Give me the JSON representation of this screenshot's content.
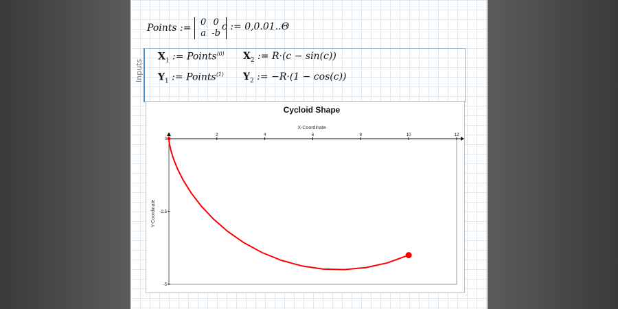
{
  "worksheet": {
    "points_def": {
      "name": "Points",
      "matrix": [
        [
          "0",
          "0"
        ],
        [
          "a",
          "-b"
        ]
      ]
    },
    "range_def": "c := 0,0.01..Θ",
    "region_label": "Inputs",
    "x1": {
      "lhs": "X",
      "sub": "1",
      "rhs": "Points",
      "sup": "⟨0⟩"
    },
    "y1": {
      "lhs": "Y",
      "sub": "1",
      "rhs": "Points",
      "sup": "⟨1⟩"
    },
    "x2": {
      "lhs": "X",
      "sub": "2",
      "rhs": "R·(c − sin(c))"
    },
    "y2": {
      "lhs": "Y",
      "sub": "2",
      "rhs": "−R·(1 − cos(c))"
    }
  },
  "chart_data": {
    "type": "line",
    "title": "Cycloid Shape",
    "xlabel": "X-Coordinate",
    "ylabel": "Y-Coordinate",
    "xlim": [
      0,
      12
    ],
    "ylim": [
      -5,
      0
    ],
    "xticks": [
      "0",
      "2",
      "4",
      "6",
      "8",
      "10",
      "12"
    ],
    "yticks": [
      "0",
      "-2.5",
      "-5"
    ],
    "series": [
      {
        "color": "#ff0000",
        "x": [
          0,
          0.003,
          0.024,
          0.08,
          0.186,
          0.357,
          0.603,
          0.933,
          1.351,
          1.859,
          2.454,
          3.131,
          3.88,
          4.69,
          5.546,
          6.433,
          7.331,
          8.225,
          9.096,
          10.0
        ],
        "y": [
          0,
          -0.045,
          -0.178,
          -0.393,
          -0.682,
          -1.034,
          -1.435,
          -1.868,
          -2.316,
          -2.761,
          -3.186,
          -3.574,
          -3.909,
          -4.178,
          -4.37,
          -4.478,
          -4.496,
          -4.425,
          -4.268,
          -4.0
        ]
      },
      {
        "color": "#ff0000",
        "marker": "dot",
        "x": [
          0,
          10
        ],
        "y": [
          0,
          -4
        ]
      }
    ]
  }
}
